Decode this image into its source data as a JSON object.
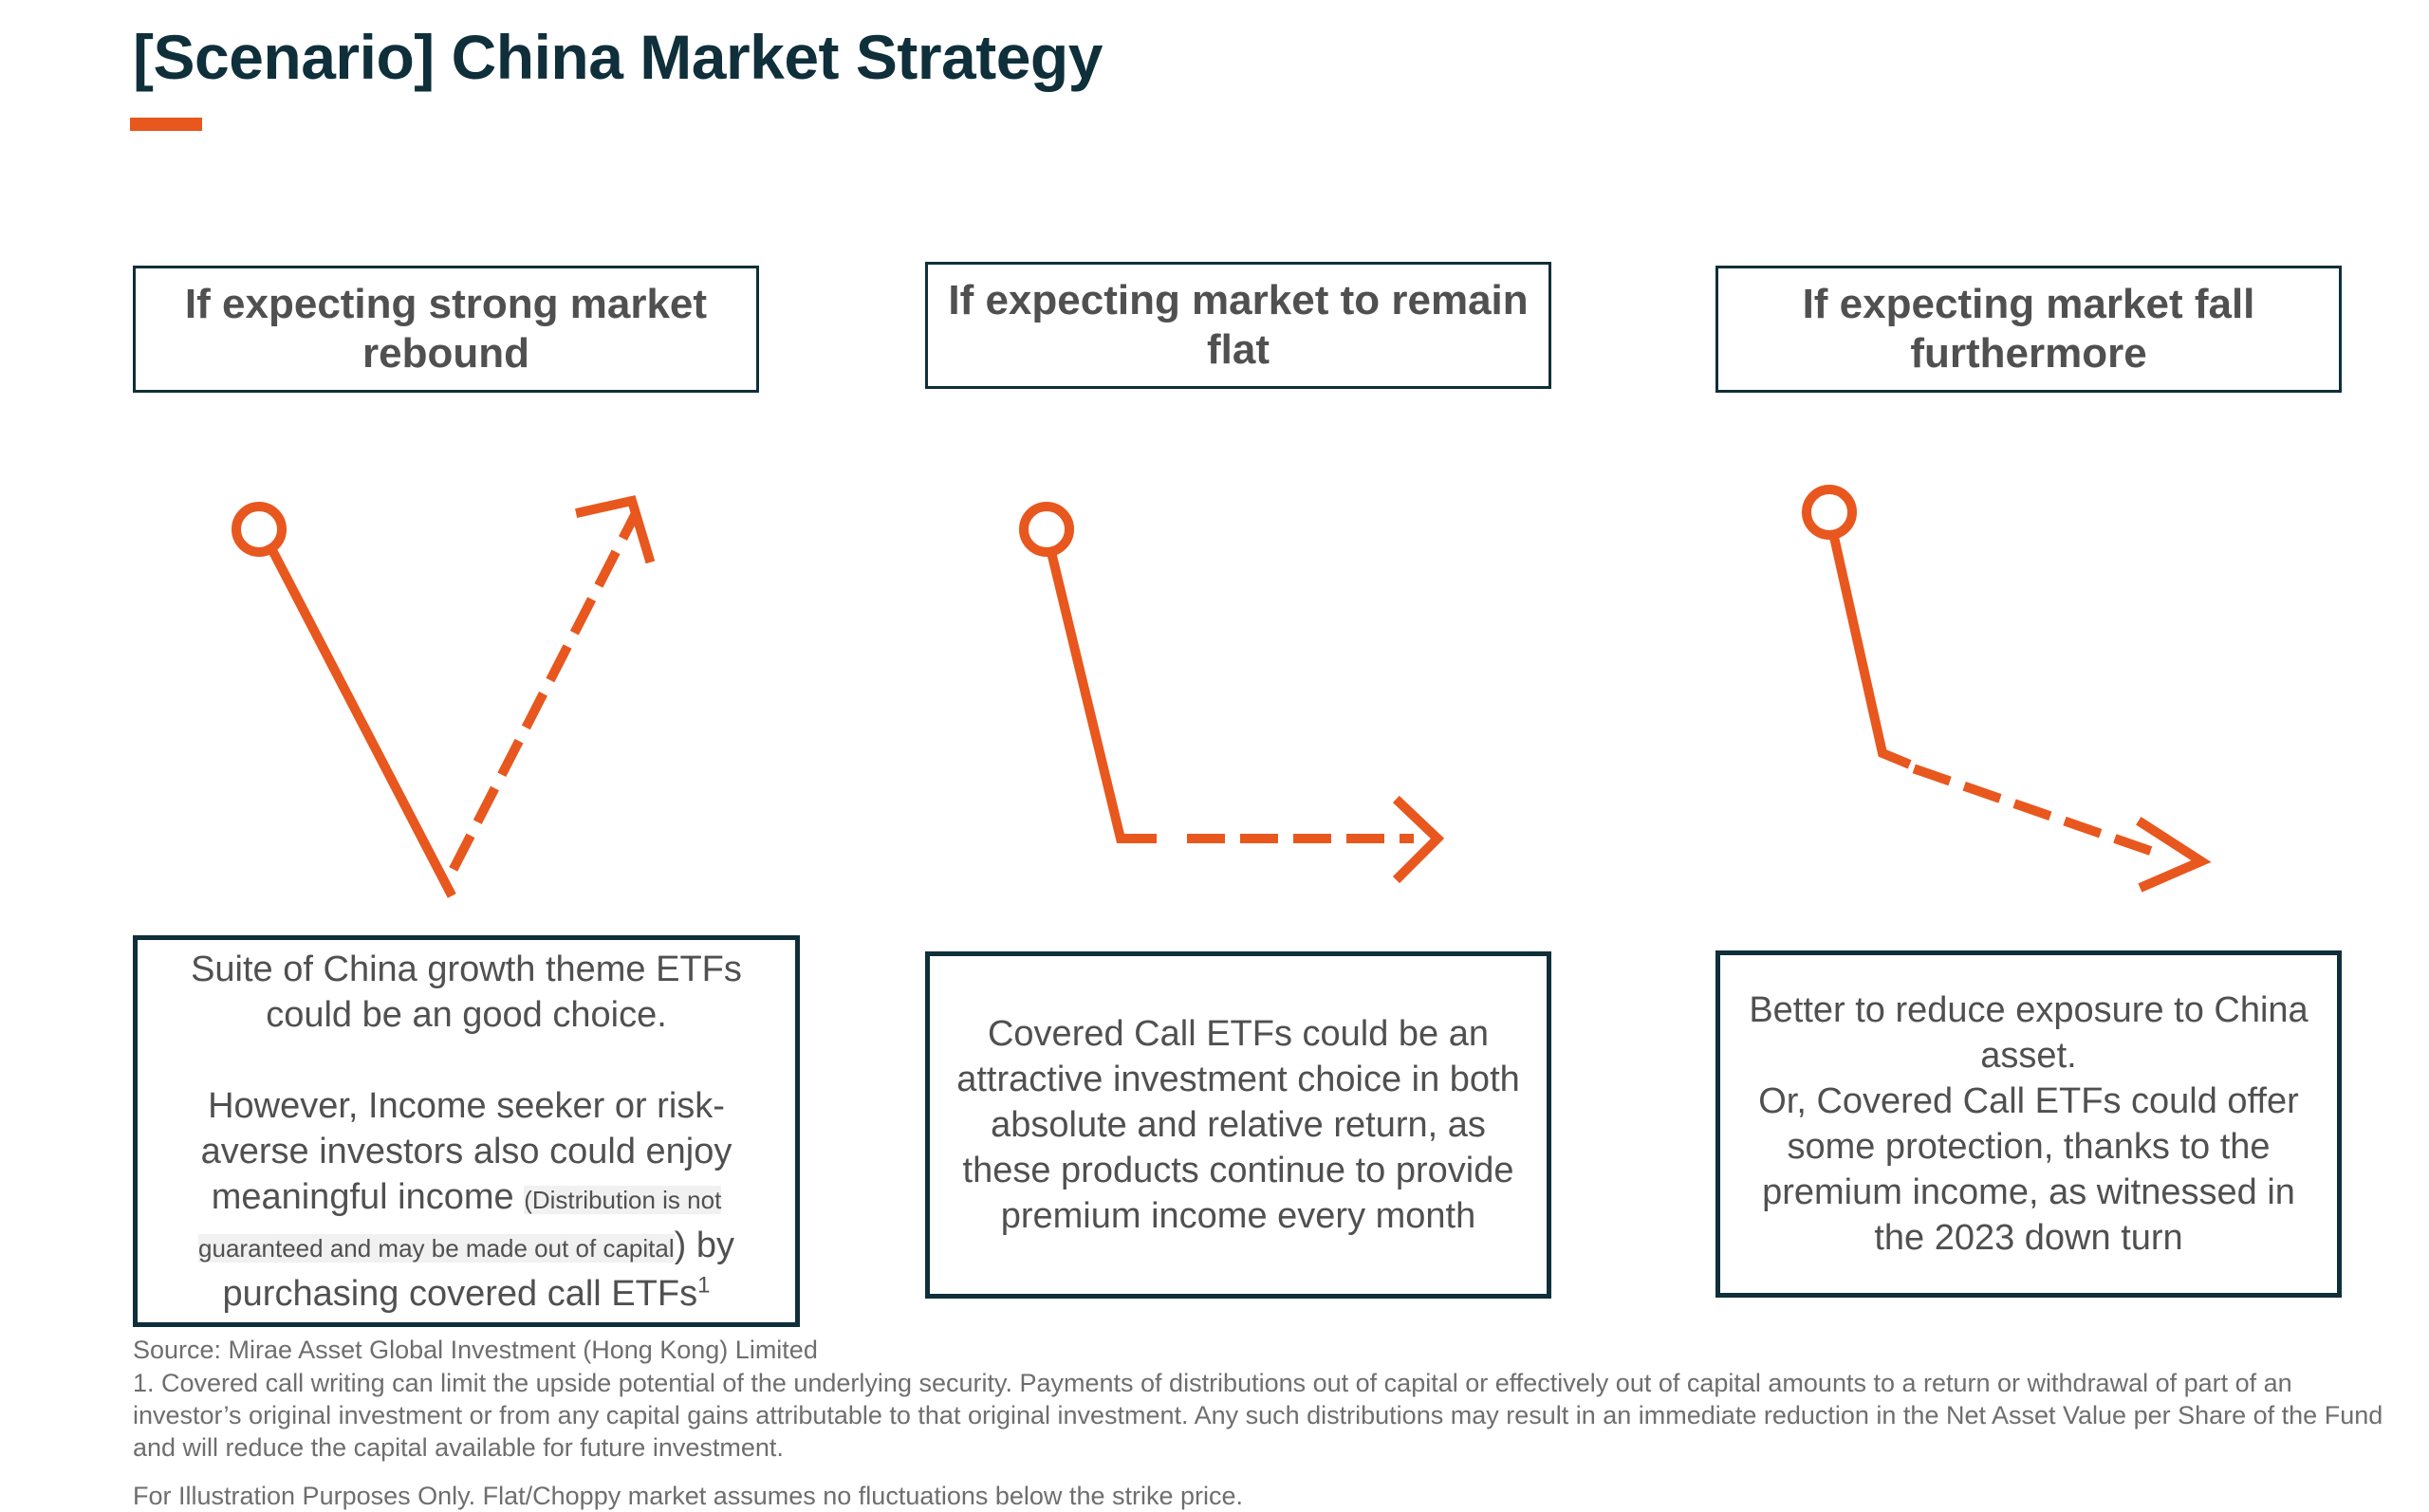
{
  "title": "[Scenario] China Market Strategy",
  "accent_color": "#e8571e",
  "dark_color": "#0f2f3a",
  "scenarios": [
    {
      "heading": "If expecting strong market rebound",
      "body_line1": "Suite of China growth theme ETFs could be an good choice.",
      "body_line2_start": "However, Income seeker or risk-averse investors also could enjoy meaningful income",
      "body_note": "(Distribution is not guaranteed and may be made out of capital",
      "body_line2_end": ") by purchasing covered call ETFs",
      "footnote_marker": "1"
    },
    {
      "heading": "If expecting market to remain flat",
      "body": "Covered Call ETFs could be an attractive investment choice in both absolute and relative return, as these products continue to provide premium income every month"
    },
    {
      "heading": "If expecting market fall furthermore",
      "body_line1": "Better to reduce exposure to China asset.",
      "body_line2": "Or, Covered Call ETFs could offer some protection, thanks to the premium income, as witnessed in the 2023 down turn"
    }
  ],
  "source": "Source: Mirae Asset Global Investment (Hong Kong) Limited",
  "footnote": "1. Covered call writing can limit the upside potential of the underlying security. Payments of distributions out of capital or effectively out of capital amounts to a return or withdrawal of part of an investor’s original investment or from any capital gains attributable to that original investment. Any such distributions may result in an immediate reduction in the Net Asset Value per Share of the Fund and will reduce the capital available for future investment.",
  "disclaimer": "For Illustration Purposes Only. Flat/Choppy market assumes no fluctuations below the strike price."
}
